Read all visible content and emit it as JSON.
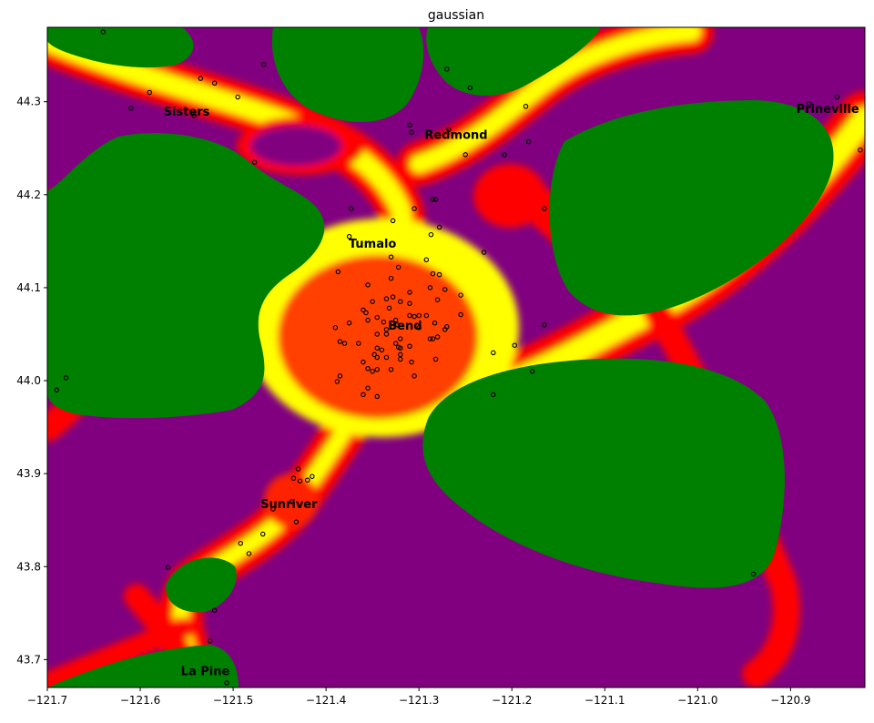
{
  "chart_data": {
    "type": "heatmap",
    "title": "gaussian",
    "xlabel": "",
    "ylabel": "",
    "xlim": [
      -121.7,
      -120.82
    ],
    "ylim": [
      43.67,
      44.38
    ],
    "grid": false,
    "legend": "none",
    "xticks": [
      {
        "value": -121.7,
        "label": "−121.7"
      },
      {
        "value": -121.6,
        "label": "−121.6"
      },
      {
        "value": -121.5,
        "label": "−121.5"
      },
      {
        "value": -121.4,
        "label": "−121.4"
      },
      {
        "value": -121.3,
        "label": "−121.3"
      },
      {
        "value": -121.2,
        "label": "−121.2"
      },
      {
        "value": -121.1,
        "label": "−121.1"
      },
      {
        "value": -121.0,
        "label": "−121.0"
      },
      {
        "value": -120.9,
        "label": "−120.9"
      }
    ],
    "yticks": [
      {
        "value": 43.7,
        "label": "43.7"
      },
      {
        "value": 43.8,
        "label": "43.8"
      },
      {
        "value": 43.9,
        "label": "43.9"
      },
      {
        "value": 44.0,
        "label": "44.0"
      },
      {
        "value": 44.1,
        "label": "44.1"
      },
      {
        "value": 44.2,
        "label": "44.2"
      },
      {
        "value": 44.3,
        "label": "44.3"
      }
    ],
    "colormap": [
      "#800080",
      "#ff0000",
      "#ffff00",
      "#008000"
    ],
    "cities": [
      {
        "name": "Sisters",
        "x": -121.55,
        "y": 44.29
      },
      {
        "name": "Redmond",
        "x": -121.26,
        "y": 44.265
      },
      {
        "name": "Prineville",
        "x": -120.86,
        "y": 44.293
      },
      {
        "name": "Tumalo",
        "x": -121.35,
        "y": 44.148
      },
      {
        "name": "Bend",
        "x": -121.315,
        "y": 44.06
      },
      {
        "name": "Sunriver",
        "x": -121.44,
        "y": 43.868
      },
      {
        "name": "La Pine",
        "x": -121.53,
        "y": 43.688
      }
    ],
    "points": [
      [
        -121.64,
        44.375
      ],
      [
        -121.59,
        44.31
      ],
      [
        -121.61,
        44.293
      ],
      [
        -121.535,
        44.325
      ],
      [
        -121.52,
        44.32
      ],
      [
        -121.467,
        44.34
      ],
      [
        -121.495,
        44.305
      ],
      [
        -121.542,
        44.285
      ],
      [
        -121.477,
        44.235
      ],
      [
        -121.31,
        44.275
      ],
      [
        -121.308,
        44.267
      ],
      [
        -121.27,
        44.335
      ],
      [
        -121.245,
        44.315
      ],
      [
        -121.268,
        44.27
      ],
      [
        -121.25,
        44.243
      ],
      [
        -121.208,
        44.243
      ],
      [
        -121.185,
        44.295
      ],
      [
        -121.182,
        44.257
      ],
      [
        -121.165,
        44.185
      ],
      [
        -120.85,
        44.305
      ],
      [
        -120.88,
        44.298
      ],
      [
        -120.825,
        44.248
      ],
      [
        -121.373,
        44.185
      ],
      [
        -121.328,
        44.172
      ],
      [
        -121.305,
        44.185
      ],
      [
        -121.285,
        44.195
      ],
      [
        -121.282,
        44.195
      ],
      [
        -121.278,
        44.165
      ],
      [
        -121.287,
        44.157
      ],
      [
        -121.375,
        44.155
      ],
      [
        -121.23,
        44.138
      ],
      [
        -121.33,
        44.133
      ],
      [
        -121.292,
        44.13
      ],
      [
        -121.322,
        44.122
      ],
      [
        -121.285,
        44.115
      ],
      [
        -121.278,
        44.114
      ],
      [
        -121.33,
        44.11
      ],
      [
        -121.387,
        44.117
      ],
      [
        -121.355,
        44.103
      ],
      [
        -121.288,
        44.1
      ],
      [
        -121.272,
        44.098
      ],
      [
        -121.31,
        44.095
      ],
      [
        -121.255,
        44.092
      ],
      [
        -121.35,
        44.085
      ],
      [
        -121.335,
        44.088
      ],
      [
        -121.328,
        44.09
      ],
      [
        -121.32,
        44.085
      ],
      [
        -121.31,
        44.083
      ],
      [
        -121.28,
        44.087
      ],
      [
        -121.36,
        44.076
      ],
      [
        -121.357,
        44.073
      ],
      [
        -121.332,
        44.078
      ],
      [
        -121.3,
        44.07
      ],
      [
        -121.255,
        44.071
      ],
      [
        -121.345,
        44.068
      ],
      [
        -121.338,
        44.063
      ],
      [
        -121.325,
        44.065
      ],
      [
        -121.31,
        44.07
      ],
      [
        -121.305,
        44.069
      ],
      [
        -121.292,
        44.07
      ],
      [
        -121.355,
        44.065
      ],
      [
        -121.375,
        44.062
      ],
      [
        -121.39,
        44.057
      ],
      [
        -121.335,
        44.055
      ],
      [
        -121.323,
        44.06
      ],
      [
        -121.3,
        44.057
      ],
      [
        -121.283,
        44.062
      ],
      [
        -121.27,
        44.058
      ],
      [
        -121.272,
        44.055
      ],
      [
        -121.345,
        44.05
      ],
      [
        -121.335,
        44.05
      ],
      [
        -121.32,
        44.045
      ],
      [
        -121.285,
        44.045
      ],
      [
        -121.288,
        44.045
      ],
      [
        -121.28,
        44.047
      ],
      [
        -121.165,
        44.06
      ],
      [
        -121.38,
        44.04
      ],
      [
        -121.385,
        44.042
      ],
      [
        -121.365,
        44.04
      ],
      [
        -121.345,
        44.035
      ],
      [
        -121.34,
        44.033
      ],
      [
        -121.325,
        44.04
      ],
      [
        -121.322,
        44.036
      ],
      [
        -121.32,
        44.035
      ],
      [
        -121.31,
        44.037
      ],
      [
        -121.348,
        44.028
      ],
      [
        -121.345,
        44.025
      ],
      [
        -121.335,
        44.025
      ],
      [
        -121.32,
        44.023
      ],
      [
        -121.32,
        44.028
      ],
      [
        -121.308,
        44.02
      ],
      [
        -121.282,
        44.023
      ],
      [
        -121.36,
        44.02
      ],
      [
        -121.355,
        44.013
      ],
      [
        -121.35,
        44.01
      ],
      [
        -121.345,
        44.012
      ],
      [
        -121.33,
        44.012
      ],
      [
        -121.305,
        44.005
      ],
      [
        -121.385,
        44.005
      ],
      [
        -121.388,
        43.999
      ],
      [
        -121.355,
        43.992
      ],
      [
        -121.36,
        43.985
      ],
      [
        -121.345,
        43.983
      ],
      [
        -121.22,
        44.03
      ],
      [
        -121.197,
        44.038
      ],
      [
        -121.178,
        44.01
      ],
      [
        -121.22,
        43.985
      ],
      [
        -121.69,
        43.99
      ],
      [
        -121.68,
        44.003
      ],
      [
        -121.43,
        43.905
      ],
      [
        -121.435,
        43.895
      ],
      [
        -121.428,
        43.892
      ],
      [
        -121.42,
        43.893
      ],
      [
        -121.415,
        43.897
      ],
      [
        -121.437,
        43.87
      ],
      [
        -121.457,
        43.862
      ],
      [
        -121.432,
        43.848
      ],
      [
        -121.468,
        43.835
      ],
      [
        -121.492,
        43.825
      ],
      [
        -121.483,
        43.814
      ],
      [
        -121.57,
        43.799
      ],
      [
        -121.52,
        43.753
      ],
      [
        -121.525,
        43.72
      ],
      [
        -121.507,
        43.675
      ],
      [
        -120.94,
        43.792
      ]
    ]
  }
}
